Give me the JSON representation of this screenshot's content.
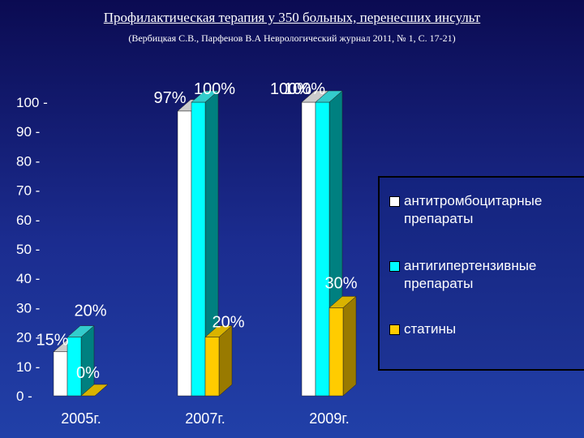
{
  "title": "Профилактическая терапия у 350 больных, перенесших инсульт",
  "subtitle": "(Вербицкая С.В., Парфенов В.А Неврологический журнал 2011, № 1, С. 17-21)",
  "colors": {
    "antiplatelet": "#ffffff",
    "antihypertensive": "#00ffff",
    "statins": "#ffcc00"
  },
  "chart_data": {
    "type": "bar",
    "title": "Профилактическая терапия у 350 больных, перенесших инсульт",
    "subtitle": "(Вербицкая С.В., Парфенов В.А Неврологический журнал 2011, № 1, С. 17-21)",
    "categories": [
      "2005г.",
      "2007г.",
      "2009г."
    ],
    "ylim": [
      0,
      100
    ],
    "yticks": [
      "0",
      "10",
      "20",
      "30",
      "40",
      "50",
      "60",
      "70",
      "80",
      "90",
      "100"
    ],
    "series": [
      {
        "name": "антитромбоцитарные препараты",
        "values": [
          15,
          97,
          100
        ],
        "labels": [
          "15%",
          "97%",
          "100%"
        ]
      },
      {
        "name": "антигипертензивные препараты",
        "values": [
          20,
          100,
          100
        ],
        "labels": [
          "20%",
          "100%",
          "100%"
        ]
      },
      {
        "name": "статины",
        "values": [
          0,
          20,
          30
        ],
        "labels": [
          "0%",
          "20%",
          "30%"
        ]
      }
    ],
    "legend_position": "right",
    "grid": false
  }
}
